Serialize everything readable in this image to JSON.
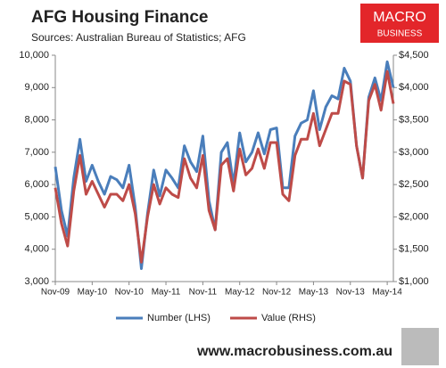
{
  "chart_data": {
    "type": "line",
    "title": "AFG Housing Finance",
    "subtitle": "Sources: Australian Bureau of Statistics; AFG",
    "logo": [
      "MACRO",
      "BUSINESS"
    ],
    "footer": "www.macrobusiness.com.au",
    "categories": [
      "Nov-09",
      null,
      null,
      null,
      null,
      null,
      "May-10",
      null,
      null,
      null,
      null,
      null,
      "Nov-10",
      null,
      null,
      null,
      null,
      null,
      "May-11",
      null,
      null,
      null,
      null,
      null,
      "Nov-11",
      null,
      null,
      null,
      null,
      null,
      "May-12",
      null,
      null,
      null,
      null,
      null,
      "Nov-12",
      null,
      null,
      null,
      null,
      null,
      "May-13",
      null,
      null,
      null,
      null,
      null,
      "Nov-13",
      null,
      null,
      null,
      null,
      null,
      "May-14",
      null
    ],
    "series": [
      {
        "name": "Number (LHS)",
        "color": "#4a7ebb",
        "values": [
          6550,
          5200,
          4400,
          6200,
          7400,
          6100,
          6600,
          6100,
          5700,
          6250,
          6150,
          5900,
          6600,
          5300,
          3400,
          5100,
          6450,
          5650,
          6450,
          6200,
          5900,
          7200,
          6700,
          6400,
          7500,
          5500,
          4600,
          7000,
          7300,
          6000,
          7600,
          6700,
          7000,
          7600,
          6950,
          7700,
          7750,
          5900,
          5900,
          7500,
          7900,
          8000,
          8900,
          7700,
          8400,
          8750,
          8650,
          9600,
          9200,
          7200,
          6200,
          8700,
          9300,
          8600,
          9800,
          9000
        ]
      },
      {
        "name": "Value (RHS)",
        "color": "#be4b48",
        "axis": "y2",
        "values": [
          2450,
          1900,
          1550,
          2400,
          2950,
          2350,
          2550,
          2350,
          2150,
          2350,
          2350,
          2250,
          2500,
          2050,
          1300,
          2000,
          2500,
          2200,
          2450,
          2350,
          2300,
          2900,
          2600,
          2450,
          2950,
          2100,
          1800,
          2800,
          2900,
          2400,
          3050,
          2650,
          2750,
          3050,
          2750,
          3150,
          3150,
          2350,
          2250,
          2950,
          3200,
          3200,
          3600,
          3100,
          3350,
          3600,
          3600,
          4100,
          4050,
          3100,
          2600,
          3800,
          4050,
          3650,
          4250,
          3750
        ]
      }
    ],
    "ylim": [
      3000,
      10000
    ],
    "yticks": [
      {
        "value": 3000,
        "label": "3,000"
      },
      {
        "value": 4000,
        "label": "4,000"
      },
      {
        "value": 5000,
        "label": "5,000"
      },
      {
        "value": 6000,
        "label": "6,000"
      },
      {
        "value": 7000,
        "label": "7,000"
      },
      {
        "value": 8000,
        "label": "8,000"
      },
      {
        "value": 9000,
        "label": "9,000"
      },
      {
        "value": 10000,
        "label": "10,000"
      }
    ],
    "y2lim": [
      1000,
      4500
    ],
    "y2ticks": [
      {
        "value": 1000,
        "label": "$1,000"
      },
      {
        "value": 1500,
        "label": "$1,500"
      },
      {
        "value": 2000,
        "label": "$2,000"
      },
      {
        "value": 2500,
        "label": "$2,500"
      },
      {
        "value": 3000,
        "label": "$3,000"
      },
      {
        "value": 3500,
        "label": "$3,500"
      },
      {
        "value": 4000,
        "label": "$4,000"
      },
      {
        "value": 4500,
        "label": "$4,500"
      }
    ],
    "grid": false,
    "legend": "bottom"
  }
}
